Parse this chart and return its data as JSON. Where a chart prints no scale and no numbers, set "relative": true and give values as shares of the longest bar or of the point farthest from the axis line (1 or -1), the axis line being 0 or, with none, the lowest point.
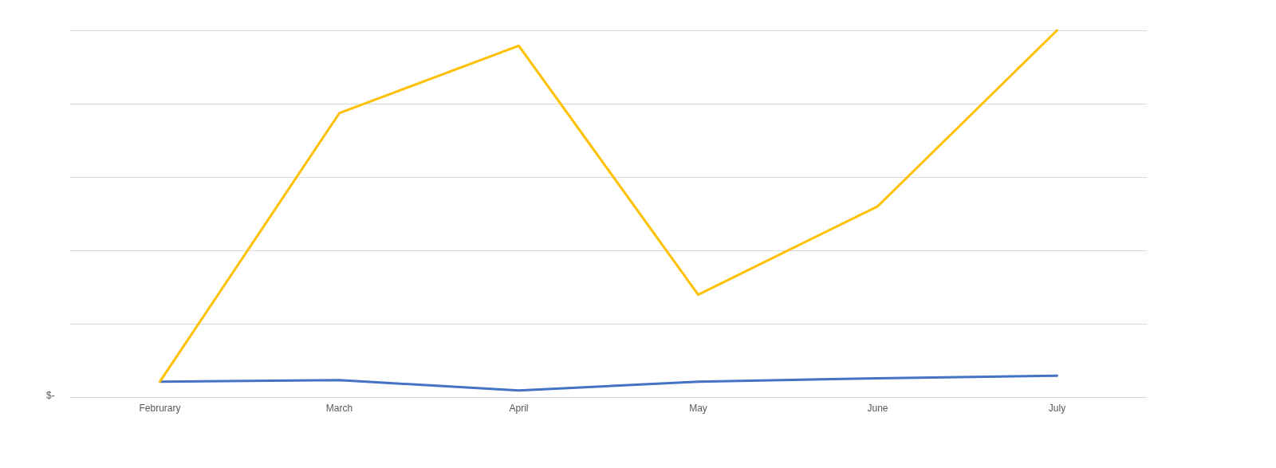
{
  "chart_data": {
    "type": "line",
    "relative": true,
    "categories": [
      "Februrary",
      "March",
      "April",
      "May",
      "June",
      "July"
    ],
    "series": [
      {
        "color": "#4472c4",
        "values": [
          0.042,
          0.046,
          0.018,
          0.042,
          0.051,
          0.058
        ]
      },
      {
        "color": "#ffc000",
        "values": [
          0.042,
          0.774,
          0.958,
          0.279,
          0.52,
          1
        ]
      }
    ],
    "annotations": [
      "$-"
    ],
    "grid": "y",
    "marker": "none",
    "line_style": "solid"
  }
}
